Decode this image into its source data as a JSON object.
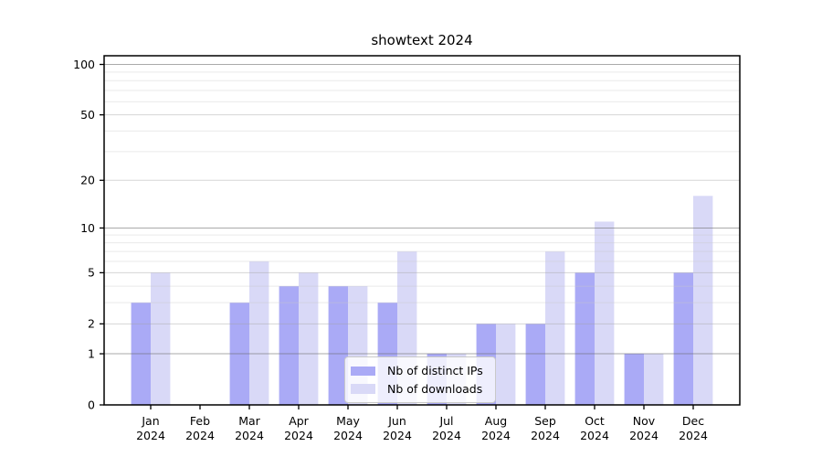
{
  "figure": {
    "background": "#ffffff"
  },
  "chart_data": {
    "type": "bar",
    "title": "showtext 2024",
    "categories": [
      "Jan 2024",
      "Feb 2024",
      "Mar 2024",
      "Apr 2024",
      "May 2024",
      "Jun 2024",
      "Jul 2024",
      "Aug 2024",
      "Sep 2024",
      "Oct 2024",
      "Nov 2024",
      "Dec 2024"
    ],
    "series": [
      {
        "name": "Nb of distinct IPs",
        "color": "#aaaaf6",
        "values": [
          3,
          0,
          3,
          4,
          4,
          3,
          1,
          2,
          2,
          5,
          1,
          5
        ]
      },
      {
        "name": "Nb of downloads",
        "color": "#d9d9f7",
        "values": [
          5,
          0,
          6,
          5,
          4,
          7,
          1,
          2,
          7,
          11,
          1,
          16
        ]
      }
    ],
    "xlabel": "",
    "ylabel": "",
    "yscale": "log1p",
    "ylim": [
      0,
      100
    ],
    "yticks": [
      0,
      1,
      2,
      5,
      10,
      20,
      50,
      100
    ],
    "minor_yticks": [
      3,
      4,
      6,
      7,
      8,
      9,
      30,
      40,
      60,
      70,
      80,
      90
    ],
    "grid": true,
    "legend_position": "lower center",
    "colors": {
      "frame": "#000000",
      "tick_label": "#000000",
      "grid_decade": "rgba(100,100,100,0.55)",
      "grid_mid": "rgba(165,165,165,0.45)",
      "grid_minor": "rgba(200,200,200,0.40)"
    }
  }
}
